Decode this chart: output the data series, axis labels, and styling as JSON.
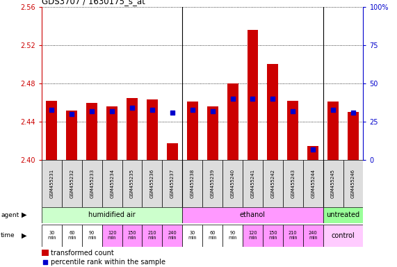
{
  "title": "GDS3707 / 1630175_s_at",
  "samples": [
    "GSM455231",
    "GSM455232",
    "GSM455233",
    "GSM455234",
    "GSM455235",
    "GSM455236",
    "GSM455237",
    "GSM455238",
    "GSM455239",
    "GSM455240",
    "GSM455241",
    "GSM455242",
    "GSM455243",
    "GSM455244",
    "GSM455245",
    "GSM455246"
  ],
  "transformed_count": [
    2.462,
    2.452,
    2.46,
    2.456,
    2.465,
    2.463,
    2.418,
    2.461,
    2.456,
    2.48,
    2.536,
    2.5,
    2.462,
    2.415,
    2.461,
    2.45
  ],
  "percentile_rank": [
    33,
    30,
    32,
    32,
    34,
    33,
    31,
    33,
    32,
    40,
    40,
    40,
    32,
    7,
    33,
    31
  ],
  "ylim_left": [
    2.4,
    2.56
  ],
  "ylim_right": [
    0,
    100
  ],
  "yticks_left": [
    2.4,
    2.44,
    2.48,
    2.52,
    2.56
  ],
  "yticks_right": [
    0,
    25,
    50,
    75,
    100
  ],
  "bar_color": "#cc0000",
  "marker_color": "#0000cc",
  "baseline": 2.4,
  "agent_groups": [
    {
      "label": "humidified air",
      "start": 0,
      "end": 7,
      "color": "#ccffcc"
    },
    {
      "label": "ethanol",
      "start": 7,
      "end": 14,
      "color": "#ff99ff"
    },
    {
      "label": "untreated",
      "start": 14,
      "end": 16,
      "color": "#99ff99"
    }
  ],
  "time_labels": [
    "30\nmin",
    "60\nmin",
    "90\nmin",
    "120\nmin",
    "150\nmin",
    "210\nmin",
    "240\nmin",
    "30\nmin",
    "60\nmin",
    "90\nmin",
    "120\nmin",
    "150\nmin",
    "210\nmin",
    "240\nmin"
  ],
  "time_bg": [
    "#ffffff",
    "#ffffff",
    "#ffffff",
    "#ff99ff",
    "#ff99ff",
    "#ff99ff",
    "#ff99ff",
    "#ffffff",
    "#ffffff",
    "#ffffff",
    "#ff99ff",
    "#ff99ff",
    "#ff99ff",
    "#ff99ff"
  ],
  "control_label": "control",
  "control_bg": "#ffccff",
  "agent_label": "agent",
  "time_label": "time",
  "legend_bar": "transformed count",
  "legend_marker": "percentile rank within the sample",
  "label_color_left": "#cc0000",
  "label_color_right": "#0000cc",
  "sample_bg": "#dddddd"
}
